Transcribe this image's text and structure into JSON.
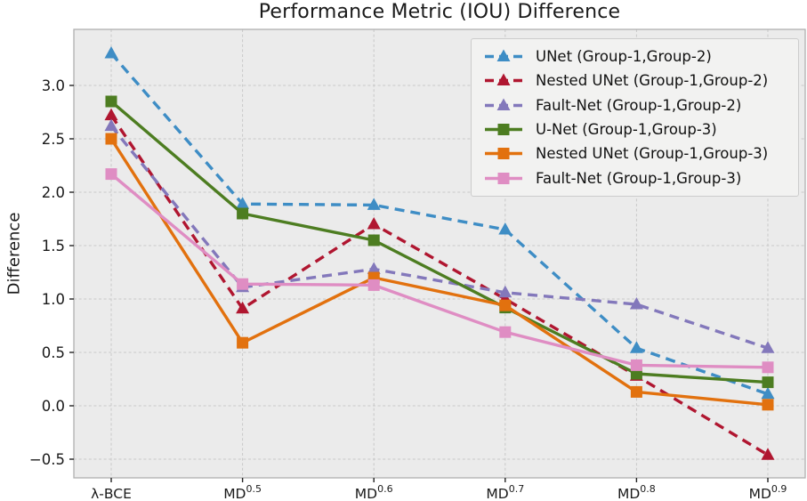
{
  "chart_data": {
    "type": "line",
    "title": "Performance Metric (IOU) Difference",
    "ylabel": "Difference",
    "xlabel": "",
    "categories": [
      "λ-BCE",
      "MD^0.5",
      "MD^0.6",
      "MD^0.7",
      "MD^0.8",
      "MD^0.9"
    ],
    "categories_display": [
      {
        "base": "λ-BCE",
        "sup": ""
      },
      {
        "base": "MD",
        "sup": "0.5"
      },
      {
        "base": "MD",
        "sup": "0.6"
      },
      {
        "base": "MD",
        "sup": "0.7"
      },
      {
        "base": "MD",
        "sup": "0.8"
      },
      {
        "base": "MD",
        "sup": "0.9"
      }
    ],
    "y_ticks": [
      3.0,
      2.5,
      2.0,
      1.5,
      1.0,
      0.5,
      0.0,
      -0.5
    ],
    "ylim": [
      -0.675,
      3.525
    ],
    "grid": "dashed",
    "legend_position": "upper right",
    "series": [
      {
        "name": "UNet (Group-1,Group-2)",
        "color": "#3e8dc5",
        "linestyle": "dashed",
        "marker": "triangle",
        "values": [
          3.3,
          1.89,
          1.88,
          1.65,
          0.54,
          0.11
        ]
      },
      {
        "name": "Nested UNet (Group-1,Group-2)",
        "color": "#b01630",
        "linestyle": "dashed",
        "marker": "triangle",
        "values": [
          2.72,
          0.91,
          1.7,
          1.0,
          0.28,
          -0.46
        ]
      },
      {
        "name": "Fault-Net (Group-1,Group-2)",
        "color": "#8378bb",
        "linestyle": "dashed",
        "marker": "triangle",
        "values": [
          2.62,
          1.11,
          1.28,
          1.06,
          0.95,
          0.54
        ]
      },
      {
        "name": "U-Net (Group-1,Group-3)",
        "color": "#4d7d21",
        "linestyle": "solid",
        "marker": "square",
        "values": [
          2.85,
          1.8,
          1.55,
          0.92,
          0.3,
          0.22
        ]
      },
      {
        "name": "Nested UNet (Group-1,Group-3)",
        "color": "#e2710e",
        "linestyle": "solid",
        "marker": "square",
        "values": [
          2.5,
          0.59,
          1.2,
          0.94,
          0.13,
          0.01
        ]
      },
      {
        "name": "Fault-Net (Group-1,Group-3)",
        "color": "#df8dc3",
        "linestyle": "solid",
        "marker": "square",
        "values": [
          2.17,
          1.14,
          1.13,
          0.69,
          0.38,
          0.36
        ]
      }
    ],
    "colors": {
      "figure_background": "#ffffff",
      "plot_background": "#ebebeb",
      "grid": "#c8c8c8",
      "axis_edge": "#b0b0b0",
      "tick": "#222222",
      "text": "#1a1a1a"
    }
  }
}
